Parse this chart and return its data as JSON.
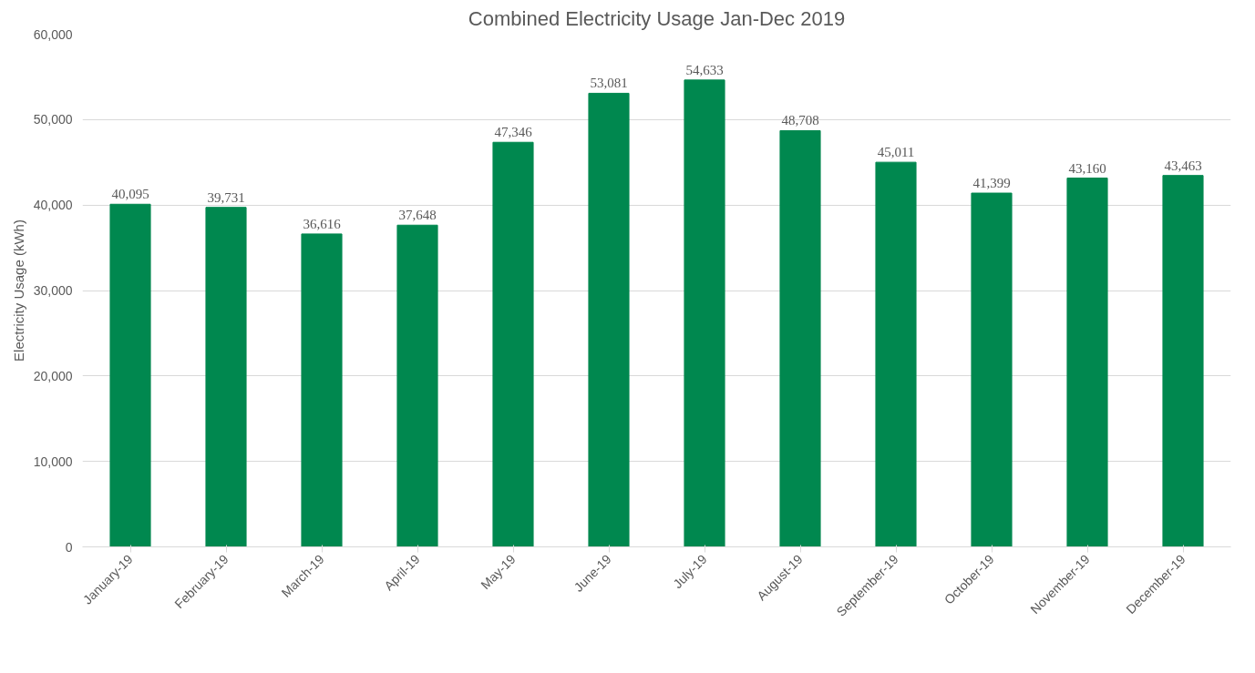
{
  "chart_data": {
    "type": "bar",
    "title": "Combined Electricity Usage Jan-Dec 2019",
    "ylabel": "Electricity Usage (kWh)",
    "categories": [
      "January-19",
      "February-19",
      "March-19",
      "April-19",
      "May-19",
      "June-19",
      "July-19",
      "August-19",
      "September-19",
      "October-19",
      "November-19",
      "December-19"
    ],
    "values": [
      40095,
      39731,
      36616,
      37648,
      47346,
      53081,
      54633,
      48708,
      45011,
      41399,
      43160,
      43463
    ],
    "value_labels": [
      "40,095",
      "39,731",
      "36,616",
      "37,648",
      "47,346",
      "53,081",
      "54,633",
      "48,708",
      "45,011",
      "41,399",
      "43,160",
      "43,463"
    ],
    "color": "#00884f",
    "ylim": [
      0,
      60000
    ],
    "yticks": [
      {
        "value": 0,
        "label": "0"
      },
      {
        "value": 10000,
        "label": "10,000"
      },
      {
        "value": 20000,
        "label": "20,000"
      },
      {
        "value": 30000,
        "label": "30,000"
      },
      {
        "value": 40000,
        "label": "40,000"
      },
      {
        "value": 50000,
        "label": "50,000"
      },
      {
        "value": 60000,
        "label": "60,000"
      }
    ],
    "grid": "y"
  }
}
